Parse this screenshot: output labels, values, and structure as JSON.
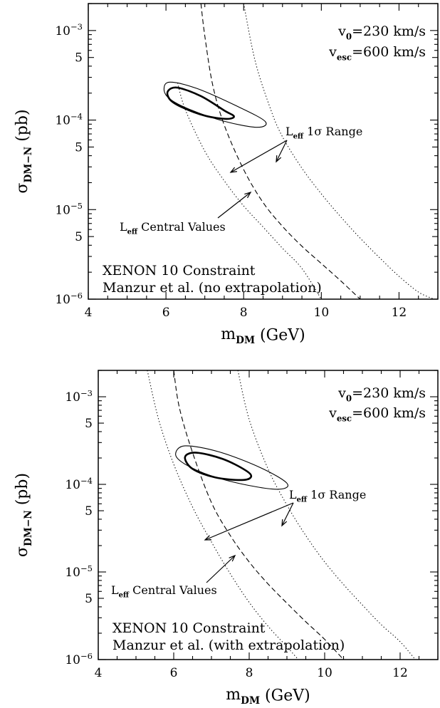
{
  "chart_data": [
    {
      "type": "line",
      "panel": "top",
      "xlabel": {
        "main": "m",
        "sub": "DM",
        "unit": "(GeV)"
      },
      "ylabel": {
        "main": "σ",
        "sub": "DM−N",
        "unit": "(pb)"
      },
      "xlim": [
        4,
        13
      ],
      "ylim": [
        1e-06,
        0.002
      ],
      "yscale": "log",
      "x_ticks": [
        "4",
        "6",
        "8",
        "10",
        "12"
      ],
      "y_ticks": [
        {
          "value": 0.001,
          "base": "10",
          "exp": "−3"
        },
        {
          "value": 0.0005,
          "base": "5",
          "exp": ""
        },
        {
          "value": 0.0001,
          "base": "10",
          "exp": "−4"
        },
        {
          "value": 5e-05,
          "base": "5",
          "exp": ""
        },
        {
          "value": 1e-05,
          "base": "10",
          "exp": "−5"
        },
        {
          "value": 5e-06,
          "base": "5",
          "exp": ""
        },
        {
          "value": 1e-06,
          "base": "10",
          "exp": "−6"
        }
      ],
      "params": [
        {
          "main": "v",
          "sub": "0",
          "rest": "=230 km/s"
        },
        {
          "main": "v",
          "sub": "esc",
          "rest": "=600 km/s"
        }
      ],
      "constraint_title": "XENON 10 Constraint",
      "constraint_subtitle": "Manzur et al. (no extrapolation)",
      "annotation_range": {
        "main": "L",
        "sub": "eff",
        "rest": " 1σ Range"
      },
      "annotation_central": {
        "main": "L",
        "sub": "eff",
        "rest": " Central Values"
      },
      "series": [
        {
          "style": "dashed",
          "x": [
            6.9,
            7.0,
            7.2,
            7.5,
            8.0,
            8.5,
            9.0,
            9.5,
            10.0,
            10.5,
            11.0
          ],
          "y": [
            0.002,
            0.00087,
            0.00025,
            8.8e-05,
            2.8e-05,
            1.2e-05,
            6.5e-06,
            3.9e-06,
            2.5e-06,
            1.6e-06,
            1e-06
          ]
        },
        {
          "style": "dotted",
          "x": [
            6.3,
            6.5,
            7.0,
            7.5,
            8.0,
            8.5,
            9.0,
            9.5,
            10.0
          ],
          "y": [
            0.00026,
            0.00013,
            4.5e-05,
            2.1e-05,
            1.1e-05,
            6.4e-06,
            3.7e-06,
            2.2e-06,
            1e-06
          ]
        },
        {
          "style": "dotted",
          "x": [
            8.0,
            8.3,
            8.7,
            9.0,
            9.5,
            10.0,
            10.5,
            11.0,
            11.5,
            12.0,
            12.5,
            12.9
          ],
          "y": [
            0.002,
            0.00045,
            0.00013,
            6.5e-05,
            2.9e-05,
            1.5e-05,
            8.3e-06,
            4.8e-06,
            2.9e-06,
            1.8e-06,
            1.2e-06,
            1e-06
          ]
        }
      ],
      "contours": [
        {
          "level": "inner",
          "x": [
            6.05,
            6.3,
            6.9,
            7.5,
            7.75,
            7.55,
            7.0,
            6.4,
            6.1,
            6.05
          ],
          "y": [
            0.00021,
            0.00023,
            0.000185,
            0.000128,
            0.00011,
            0.000103,
            0.000112,
            0.00014,
            0.00017,
            0.00021
          ]
        },
        {
          "level": "outer",
          "x": [
            5.95,
            6.1,
            6.8,
            7.8,
            8.55,
            8.35,
            7.5,
            6.6,
            6.1,
            5.95
          ],
          "y": [
            0.00022,
            0.000265,
            0.000225,
            0.000145,
            9.7e-05,
            8.3e-05,
            9.7e-05,
            0.000132,
            0.000172,
            0.00022
          ]
        }
      ]
    },
    {
      "type": "line",
      "panel": "bottom",
      "xlabel": {
        "main": "m",
        "sub": "DM",
        "unit": "(GeV)"
      },
      "ylabel": {
        "main": "σ",
        "sub": "DM−N",
        "unit": "(pb)"
      },
      "xlim": [
        4,
        13
      ],
      "ylim": [
        1e-06,
        0.002
      ],
      "yscale": "log",
      "x_ticks": [
        "4",
        "6",
        "8",
        "10",
        "12"
      ],
      "y_ticks": [
        {
          "value": 0.001,
          "base": "10",
          "exp": "−3"
        },
        {
          "value": 0.0005,
          "base": "5",
          "exp": ""
        },
        {
          "value": 0.0001,
          "base": "10",
          "exp": "−4"
        },
        {
          "value": 5e-05,
          "base": "5",
          "exp": ""
        },
        {
          "value": 1e-05,
          "base": "10",
          "exp": "−5"
        },
        {
          "value": 5e-06,
          "base": "5",
          "exp": ""
        },
        {
          "value": 1e-06,
          "base": "10",
          "exp": "−6"
        }
      ],
      "params": [
        {
          "main": "v",
          "sub": "0",
          "rest": "=230 km/s"
        },
        {
          "main": "v",
          "sub": "esc",
          "rest": "=600 km/s"
        }
      ],
      "constraint_title": "XENON 10 Constraint",
      "constraint_subtitle": "Manzur et al. (with extrapolation)",
      "annotation_range": {
        "main": "L",
        "sub": "eff",
        "rest": " 1σ Range"
      },
      "annotation_central": {
        "main": "L",
        "sub": "eff",
        "rest": " Central Values"
      },
      "series": [
        {
          "style": "dashed",
          "x": [
            6.0,
            6.15,
            6.5,
            7.0,
            7.5,
            8.0,
            8.5,
            9.0,
            9.5,
            10.0,
            10.5
          ],
          "y": [
            0.002,
            0.00075,
            0.00023,
            6.2e-05,
            2.6e-05,
            1.3e-05,
            7.3e-06,
            4.4e-06,
            2.7e-06,
            1.7e-06,
            1e-06
          ]
        },
        {
          "style": "dotted",
          "x": [
            5.3,
            5.6,
            6.0,
            6.5,
            7.0,
            7.5,
            8.0,
            8.5,
            9.0,
            9.3
          ],
          "y": [
            0.002,
            0.00055,
            0.00017,
            5.5e-05,
            2.2e-05,
            9.5e-06,
            4.5e-06,
            2.4e-06,
            1.4e-06,
            1e-06
          ]
        },
        {
          "style": "dotted",
          "x": [
            7.7,
            8.0,
            8.5,
            9.0,
            9.5,
            10.0,
            10.5,
            11.0,
            11.5,
            12.0,
            12.4
          ],
          "y": [
            0.002,
            0.00055,
            0.00015,
            5.8e-05,
            2.6e-05,
            1.3e-05,
            7.2e-06,
            4.2e-06,
            2.5e-06,
            1.6e-06,
            1e-06
          ]
        }
      ],
      "contours": [
        {
          "level": "inner",
          "x": [
            6.3,
            6.6,
            7.3,
            7.9,
            8.05,
            7.8,
            7.1,
            6.5,
            6.3
          ],
          "y": [
            0.000205,
            0.00023,
            0.000195,
            0.000145,
            0.000122,
            0.000112,
            0.00012,
            0.00015,
            0.000205
          ]
        },
        {
          "level": "outer",
          "x": [
            6.05,
            6.3,
            7.2,
            8.3,
            9.0,
            8.8,
            8.0,
            7.0,
            6.3,
            6.05
          ],
          "y": [
            0.00022,
            0.000275,
            0.000235,
            0.000155,
            0.000103,
            8.8e-05,
            9.7e-05,
            0.000125,
            0.00017,
            0.00022
          ]
        }
      ]
    }
  ]
}
